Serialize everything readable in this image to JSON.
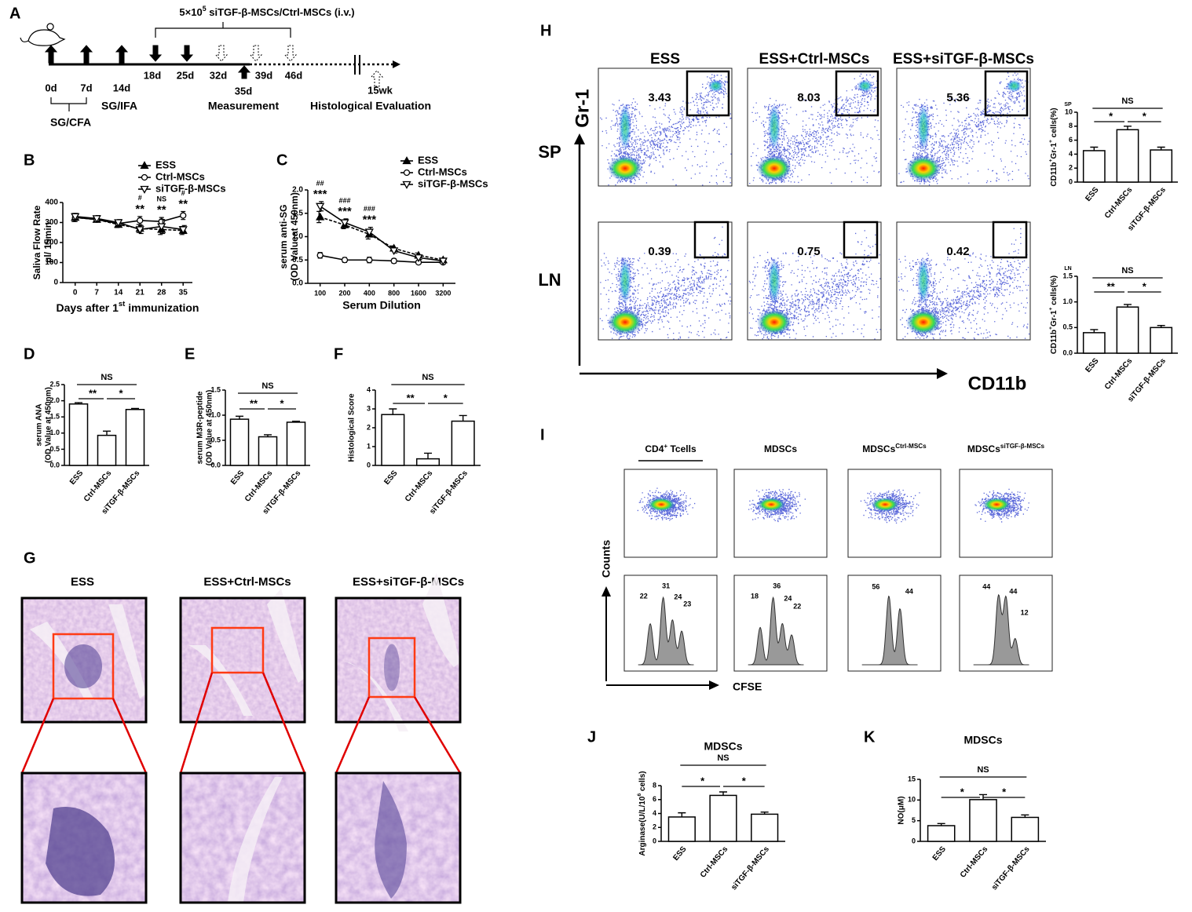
{
  "panel_letters": [
    "A",
    "B",
    "C",
    "D",
    "E",
    "F",
    "G",
    "H",
    "I",
    "J",
    "K"
  ],
  "timeline": {
    "dose": [
      {
        "text": "5×10"
      },
      {
        "text": "5",
        "sup": true
      },
      {
        "text": " siTGF-β-MSCs/Ctrl-MSCs (i.v.)"
      }
    ],
    "days": [
      "0d",
      "7d",
      "14d",
      "18d",
      "25d",
      "32d",
      "35d",
      "39d",
      "46d",
      "15wk"
    ],
    "phases": [
      "SG/CFA",
      "SG/IFA",
      "Measurement",
      "Histological Evaluation"
    ]
  },
  "chart_data": [
    {
      "type": "line",
      "x": [
        0,
        7,
        14,
        21,
        28,
        35
      ],
      "xlim": [
        -4,
        38
      ],
      "xticks": [
        0,
        7,
        14,
        21,
        28,
        35
      ],
      "ylim": [
        0,
        400
      ],
      "yticks": [
        0,
        100,
        200,
        300,
        400
      ],
      "ylabel": [
        "Saliva Flow Rate",
        "μl/ 15min"
      ],
      "xlabel": [
        {
          "text": "Days after 1"
        },
        {
          "text": "st",
          "sup": true
        },
        {
          "text": " immunization"
        }
      ],
      "series": [
        {
          "name": "ESS",
          "color": "#000000",
          "marker": "triangle",
          "filled": true,
          "values": [
            325,
            315,
            290,
            270,
            265,
            260
          ],
          "errors": [
            20,
            10,
            15,
            20,
            25,
            20
          ]
        },
        {
          "name": "Ctrl-MSCs",
          "color": "#000000",
          "marker": "circle",
          "filled": false,
          "values": [
            325,
            315,
            295,
            310,
            305,
            335
          ],
          "errors": [
            20,
            10,
            15,
            20,
            20,
            20
          ]
        },
        {
          "name": "siTGF-β-MSCs",
          "color": "#000000",
          "marker": "triangle-down",
          "filled": false,
          "values": [
            330,
            320,
            300,
            265,
            280,
            265
          ],
          "errors": [
            15,
            15,
            15,
            20,
            35,
            20
          ]
        }
      ],
      "annotations": [
        {
          "at": 21,
          "labels": [
            "**",
            "#"
          ]
        },
        {
          "at": 28,
          "labels": [
            "**",
            "NS"
          ]
        },
        {
          "at": 35,
          "labels": [
            "**",
            "#"
          ]
        }
      ]
    },
    {
      "type": "line",
      "categories": [
        "100",
        "200",
        "400",
        "800",
        "1600",
        "3200"
      ],
      "ylim": [
        0,
        2
      ],
      "yticks": [
        {
          "value": 0,
          "label": "0.0"
        },
        0.5,
        {
          "value": 1,
          "label": "1.0"
        },
        1.5,
        {
          "value": 2,
          "label": "2.0"
        }
      ],
      "ylabel": [
        "serum anti-SG",
        "(OD Valueat 450nm)"
      ],
      "xlabel": "Serum Dilution",
      "series": [
        {
          "name": "ESS",
          "color": "#000000",
          "marker": "triangle",
          "filled": true,
          "values": [
            1.42,
            1.25,
            1.05,
            0.75,
            0.6,
            0.5
          ],
          "errors": [
            0.12,
            0.08,
            0.1,
            0.05,
            0.05,
            0.03
          ]
        },
        {
          "name": "Ctrl-MSCs",
          "color": "#000000",
          "marker": "circle",
          "filled": false,
          "values": [
            0.6,
            0.5,
            0.5,
            0.48,
            0.45,
            0.45
          ],
          "errors": [
            0.06,
            0.05,
            0.06,
            0.05,
            0.03,
            0.03
          ]
        },
        {
          "name": "siTGF-β-MSCs",
          "color": "#000000",
          "marker": "triangle-down",
          "filled": false,
          "values": [
            1.65,
            1.3,
            1.1,
            0.7,
            0.55,
            0.48
          ],
          "errors": [
            0.1,
            0.08,
            0.1,
            0.05,
            0.04,
            0.03
          ]
        }
      ],
      "annotations": [
        {
          "at": "100",
          "labels": [
            "***",
            "##"
          ]
        },
        {
          "at": "200",
          "labels": [
            "***",
            "###"
          ]
        },
        {
          "at": "400",
          "labels": [
            "***",
            "###"
          ]
        }
      ]
    },
    {
      "type": "bar",
      "categories": [
        "ESS",
        "Ctrl-MSCs",
        "siTGF-β-MSCs"
      ],
      "values": [
        1.9,
        0.93,
        1.73
      ],
      "errors": [
        0.04,
        0.13,
        0.03
      ],
      "color": "#ffffff",
      "ylim": [
        0,
        2.5
      ],
      "yticks": [
        {
          "value": 0,
          "label": "0.0"
        },
        0.5,
        {
          "value": 1,
          "label": "1.0"
        },
        1.5,
        {
          "value": 2,
          "label": "2.0"
        },
        2.5
      ],
      "ylabel": [
        "serum ANA",
        "(OD Value at 450nm)"
      ],
      "comparisons": [
        {
          "label": "NS",
          "between": [
            "ESS",
            "siTGF-β-MSCs"
          ]
        },
        {
          "label": "**",
          "between": [
            "ESS",
            "Ctrl-MSCs"
          ]
        },
        {
          "label": "*",
          "between": [
            "Ctrl-MSCs",
            "siTGF-β-MSCs"
          ]
        }
      ]
    },
    {
      "type": "bar",
      "categories": [
        "ESS",
        "Ctrl-MSCs",
        "siTGF-β-MSCs"
      ],
      "values": [
        0.92,
        0.57,
        0.86
      ],
      "errors": [
        0.06,
        0.04,
        0.02
      ],
      "color": "#ffffff",
      "ylim": [
        0,
        1.5
      ],
      "yticks": [
        {
          "value": 0,
          "label": "0.0"
        },
        0.5,
        {
          "value": 1,
          "label": "1.0"
        },
        1.5
      ],
      "ylabel": [
        "serum M3R-peptide",
        "(OD Value at 450nm)"
      ],
      "comparisons": [
        {
          "label": "NS",
          "between": [
            "ESS",
            "siTGF-β-MSCs"
          ]
        },
        {
          "label": "**",
          "between": [
            "ESS",
            "Ctrl-MSCs"
          ]
        },
        {
          "label": "*",
          "between": [
            "Ctrl-MSCs",
            "siTGF-β-MSCs"
          ]
        }
      ]
    },
    {
      "type": "bar",
      "categories": [
        "ESS",
        "Ctrl-MSCs",
        "siTGF-β-MSCs"
      ],
      "values": [
        2.7,
        0.35,
        2.35
      ],
      "errors": [
        0.3,
        0.3,
        0.3
      ],
      "color": "#ffffff",
      "ylim": [
        0,
        4
      ],
      "yticks": [
        0,
        1,
        2,
        3,
        4
      ],
      "ylabel": [
        "Histological Score"
      ],
      "comparisons": [
        {
          "label": "NS",
          "between": [
            "ESS",
            "siTGF-β-MSCs"
          ]
        },
        {
          "label": "**",
          "between": [
            "ESS",
            "Ctrl-MSCs"
          ]
        },
        {
          "label": "*",
          "between": [
            "Ctrl-MSCs",
            "siTGF-β-MSCs"
          ]
        }
      ]
    },
    {
      "type": "bar",
      "tag": "SP",
      "categories": [
        "ESS",
        "Ctrl-MSCs",
        "siTGF-β-MSCs"
      ],
      "values": [
        4.5,
        7.5,
        4.6
      ],
      "errors": [
        0.5,
        0.5,
        0.4
      ],
      "color": "#ffffff",
      "ylim": [
        0,
        10
      ],
      "yticks": [
        0,
        2,
        4,
        6,
        8,
        10
      ],
      "ylabel": [
        [
          {
            "text": "CD11b"
          },
          {
            "text": "+",
            "sup": true
          },
          {
            "text": "Gr-1"
          },
          {
            "text": "+",
            "sup": true
          },
          {
            "text": " cells(%)"
          }
        ]
      ],
      "comparisons": [
        {
          "label": "NS",
          "between": [
            "ESS",
            "siTGF-β-MSCs"
          ]
        },
        {
          "label": "*",
          "between": [
            "ESS",
            "Ctrl-MSCs"
          ]
        },
        {
          "label": "*",
          "between": [
            "Ctrl-MSCs",
            "siTGF-β-MSCs"
          ]
        }
      ]
    },
    {
      "type": "bar",
      "tag": "LN",
      "categories": [
        "ESS",
        "Ctrl-MSCs",
        "siTGF-β-MSCs"
      ],
      "values": [
        0.4,
        0.9,
        0.5
      ],
      "errors": [
        0.06,
        0.05,
        0.04
      ],
      "color": "#ffffff",
      "ylim": [
        0,
        1.5
      ],
      "yticks": [
        {
          "value": 0,
          "label": "0.0"
        },
        0.5,
        {
          "value": 1,
          "label": "1.0"
        },
        1.5
      ],
      "ylabel": [
        [
          {
            "text": "CD11b"
          },
          {
            "text": "+",
            "sup": true
          },
          {
            "text": "Gr-1"
          },
          {
            "text": "+",
            "sup": true
          },
          {
            "text": " cells(%)"
          }
        ]
      ],
      "comparisons": [
        {
          "label": "NS",
          "between": [
            "ESS",
            "siTGF-β-MSCs"
          ]
        },
        {
          "label": "**",
          "between": [
            "ESS",
            "Ctrl-MSCs"
          ]
        },
        {
          "label": "*",
          "between": [
            "Ctrl-MSCs",
            "siTGF-β-MSCs"
          ]
        }
      ]
    },
    {
      "type": "bar",
      "title": "MDSCs",
      "categories": [
        "ESS",
        "Ctrl-MSCs",
        "siTGF-β-MSCs"
      ],
      "values": [
        3.5,
        6.6,
        3.9
      ],
      "errors": [
        0.6,
        0.5,
        0.3
      ],
      "color": "#ffffff",
      "ylim": [
        0,
        8
      ],
      "yticks": [
        0,
        2,
        4,
        6,
        8
      ],
      "ylabel": [
        [
          {
            "text": "Arginase(U/L/10"
          },
          {
            "text": "6",
            "sup": true
          },
          {
            "text": " cells)"
          }
        ]
      ],
      "comparisons": [
        {
          "label": "NS",
          "between": [
            "ESS",
            "siTGF-β-MSCs"
          ]
        },
        {
          "label": "*",
          "between": [
            "ESS",
            "Ctrl-MSCs"
          ]
        },
        {
          "label": "*",
          "between": [
            "Ctrl-MSCs",
            "siTGF-β-MSCs"
          ]
        }
      ]
    },
    {
      "type": "bar",
      "title": "MDSCs",
      "categories": [
        "ESS",
        "Ctrl-MSCs",
        "siTGF-β-MSCs"
      ],
      "values": [
        3.8,
        10.1,
        5.8
      ],
      "errors": [
        0.5,
        1.2,
        0.6
      ],
      "color": "#ffffff",
      "ylim": [
        0,
        15
      ],
      "yticks": [
        0,
        5,
        10,
        15
      ],
      "ylabel": [
        "NO(μM)"
      ],
      "comparisons": [
        {
          "label": "NS",
          "between": [
            "ESS",
            "siTGF-β-MSCs"
          ]
        },
        {
          "label": "*",
          "between": [
            "ESS",
            "Ctrl-MSCs"
          ]
        },
        {
          "label": "*",
          "between": [
            "Ctrl-MSCs",
            "siTGF-β-MSCs"
          ]
        }
      ]
    }
  ],
  "histology": {
    "columns": [
      "ESS",
      "ESS+Ctrl-MSCs",
      "ESS+siTGF-β-MSCs"
    ]
  },
  "flow_gates": {
    "columns": [
      "ESS",
      "ESS+Ctrl-MSCs",
      "ESS+siTGF-β-MSCs"
    ],
    "rows": [
      "SP",
      "LN"
    ],
    "y_axis": "Gr-1",
    "x_axis": "CD11b",
    "percentages": [
      [
        3.43,
        8.03,
        5.36
      ],
      [
        0.39,
        0.75,
        0.42
      ]
    ]
  },
  "proliferation": {
    "columns": [
      [
        {
          "text": "CD4"
        },
        {
          "text": "+",
          "sup": true
        },
        {
          "text": " Tcells"
        }
      ],
      [
        {
          "text": "MDSCs"
        }
      ],
      [
        {
          "text": "MDSCs"
        },
        {
          "text": "Ctrl-MSCs",
          "sup": true
        }
      ],
      [
        {
          "text": "MDSCs"
        },
        {
          "text": "siTGF-β-MSCs",
          "sup": true
        }
      ]
    ],
    "y_axis": "Counts",
    "x_axis": "CFSE",
    "peaks": [
      [
        22,
        31,
        24,
        23
      ],
      [
        18,
        36,
        24,
        22
      ],
      [
        56,
        44
      ],
      [
        44,
        44,
        12
      ]
    ]
  }
}
